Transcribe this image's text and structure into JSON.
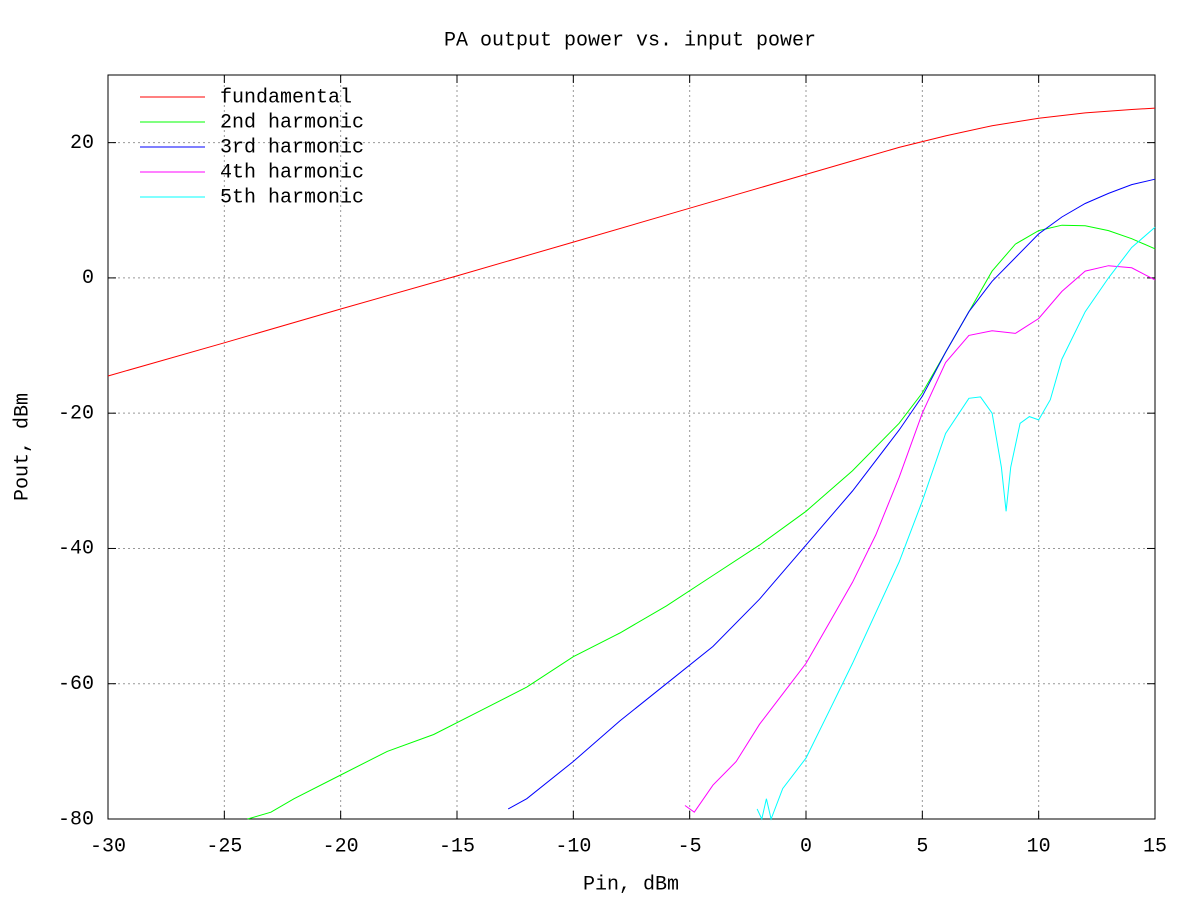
{
  "chart_data": {
    "type": "line",
    "title": "PA output power vs. input power",
    "x_label": "Pin, dBm",
    "y_label": "Pout, dBm",
    "xlim": [
      -30,
      15
    ],
    "ylim": [
      -80,
      30
    ],
    "xticks": [
      -30,
      -25,
      -20,
      -15,
      -10,
      -5,
      0,
      5,
      10,
      15
    ],
    "yticks": [
      -80,
      -60,
      -40,
      -20,
      0,
      20
    ],
    "grid": true,
    "legend": "top-left",
    "series": [
      {
        "name": "fundamental",
        "color": "#ff0000",
        "x": [
          -30,
          -25,
          -20,
          -15,
          -10,
          -5,
          0,
          2,
          4,
          6,
          8,
          10,
          12,
          14,
          15
        ],
        "values": [
          -14.5,
          -9.6,
          -4.6,
          0.3,
          5.3,
          10.3,
          15.3,
          17.3,
          19.3,
          21.0,
          22.5,
          23.6,
          24.4,
          24.9,
          25.1
        ]
      },
      {
        "name": "2nd harmonic",
        "color": "#00ff00",
        "x": [
          -24,
          -23,
          -22,
          -20,
          -18,
          -16,
          -14,
          -12,
          -10,
          -8,
          -6,
          -4,
          -2,
          0,
          2,
          4,
          5,
          6,
          7,
          8,
          9,
          10,
          11,
          12,
          13,
          14,
          15
        ],
        "values": [
          -80,
          -79,
          -77,
          -73.5,
          -70,
          -67.5,
          -64,
          -60.5,
          -56,
          -52.5,
          -48.5,
          -44,
          -39.5,
          -34.5,
          -28.5,
          -21.5,
          -17,
          -11,
          -5,
          1,
          5,
          7,
          7.8,
          7.7,
          7,
          5.8,
          4.3
        ]
      },
      {
        "name": "3rd harmonic",
        "color": "#0000ff",
        "x": [
          -12.8,
          -12,
          -10,
          -8,
          -6,
          -4,
          -2,
          0,
          2,
          4,
          5,
          6,
          7,
          8,
          9,
          10,
          11,
          12,
          13,
          14,
          15
        ],
        "values": [
          -78.5,
          -77,
          -71.5,
          -65.5,
          -60,
          -54.5,
          -47.5,
          -39.5,
          -31.5,
          -22.5,
          -17.5,
          -11,
          -5,
          -0.5,
          3,
          6.5,
          9,
          11,
          12.5,
          13.8,
          14.6
        ]
      },
      {
        "name": "4th harmonic",
        "color": "#ff00ff",
        "x": [
          -5.2,
          -4.8,
          -4,
          -3,
          -2,
          -1,
          0,
          1,
          2,
          3,
          4,
          5,
          6,
          7,
          8,
          9,
          10,
          11,
          12,
          13,
          14,
          15
        ],
        "values": [
          -78,
          -79,
          -75,
          -71.5,
          -66,
          -61.5,
          -57,
          -51,
          -45,
          -38,
          -29.5,
          -20,
          -12.5,
          -8.5,
          -7.8,
          -8.2,
          -6,
          -2,
          1,
          1.8,
          1.5,
          -0.3
        ]
      },
      {
        "name": "5th harmonic",
        "color": "#00ffff",
        "x": [
          -2.1,
          -1.9,
          -1.7,
          -1.5,
          -1,
          0,
          1,
          2,
          3,
          4,
          5,
          6,
          7,
          7.5,
          8,
          8.4,
          8.6,
          8.8,
          9.2,
          9.6,
          10,
          10.5,
          11,
          12,
          13,
          14,
          15
        ],
        "values": [
          -78.5,
          -80,
          -77,
          -80,
          -75.5,
          -71,
          -64,
          -57,
          -49.5,
          -42,
          -33,
          -23,
          -17.8,
          -17.6,
          -20,
          -28,
          -34.5,
          -28,
          -21.5,
          -20.5,
          -21,
          -18,
          -12,
          -5,
          0,
          4.5,
          7.5
        ]
      }
    ]
  }
}
